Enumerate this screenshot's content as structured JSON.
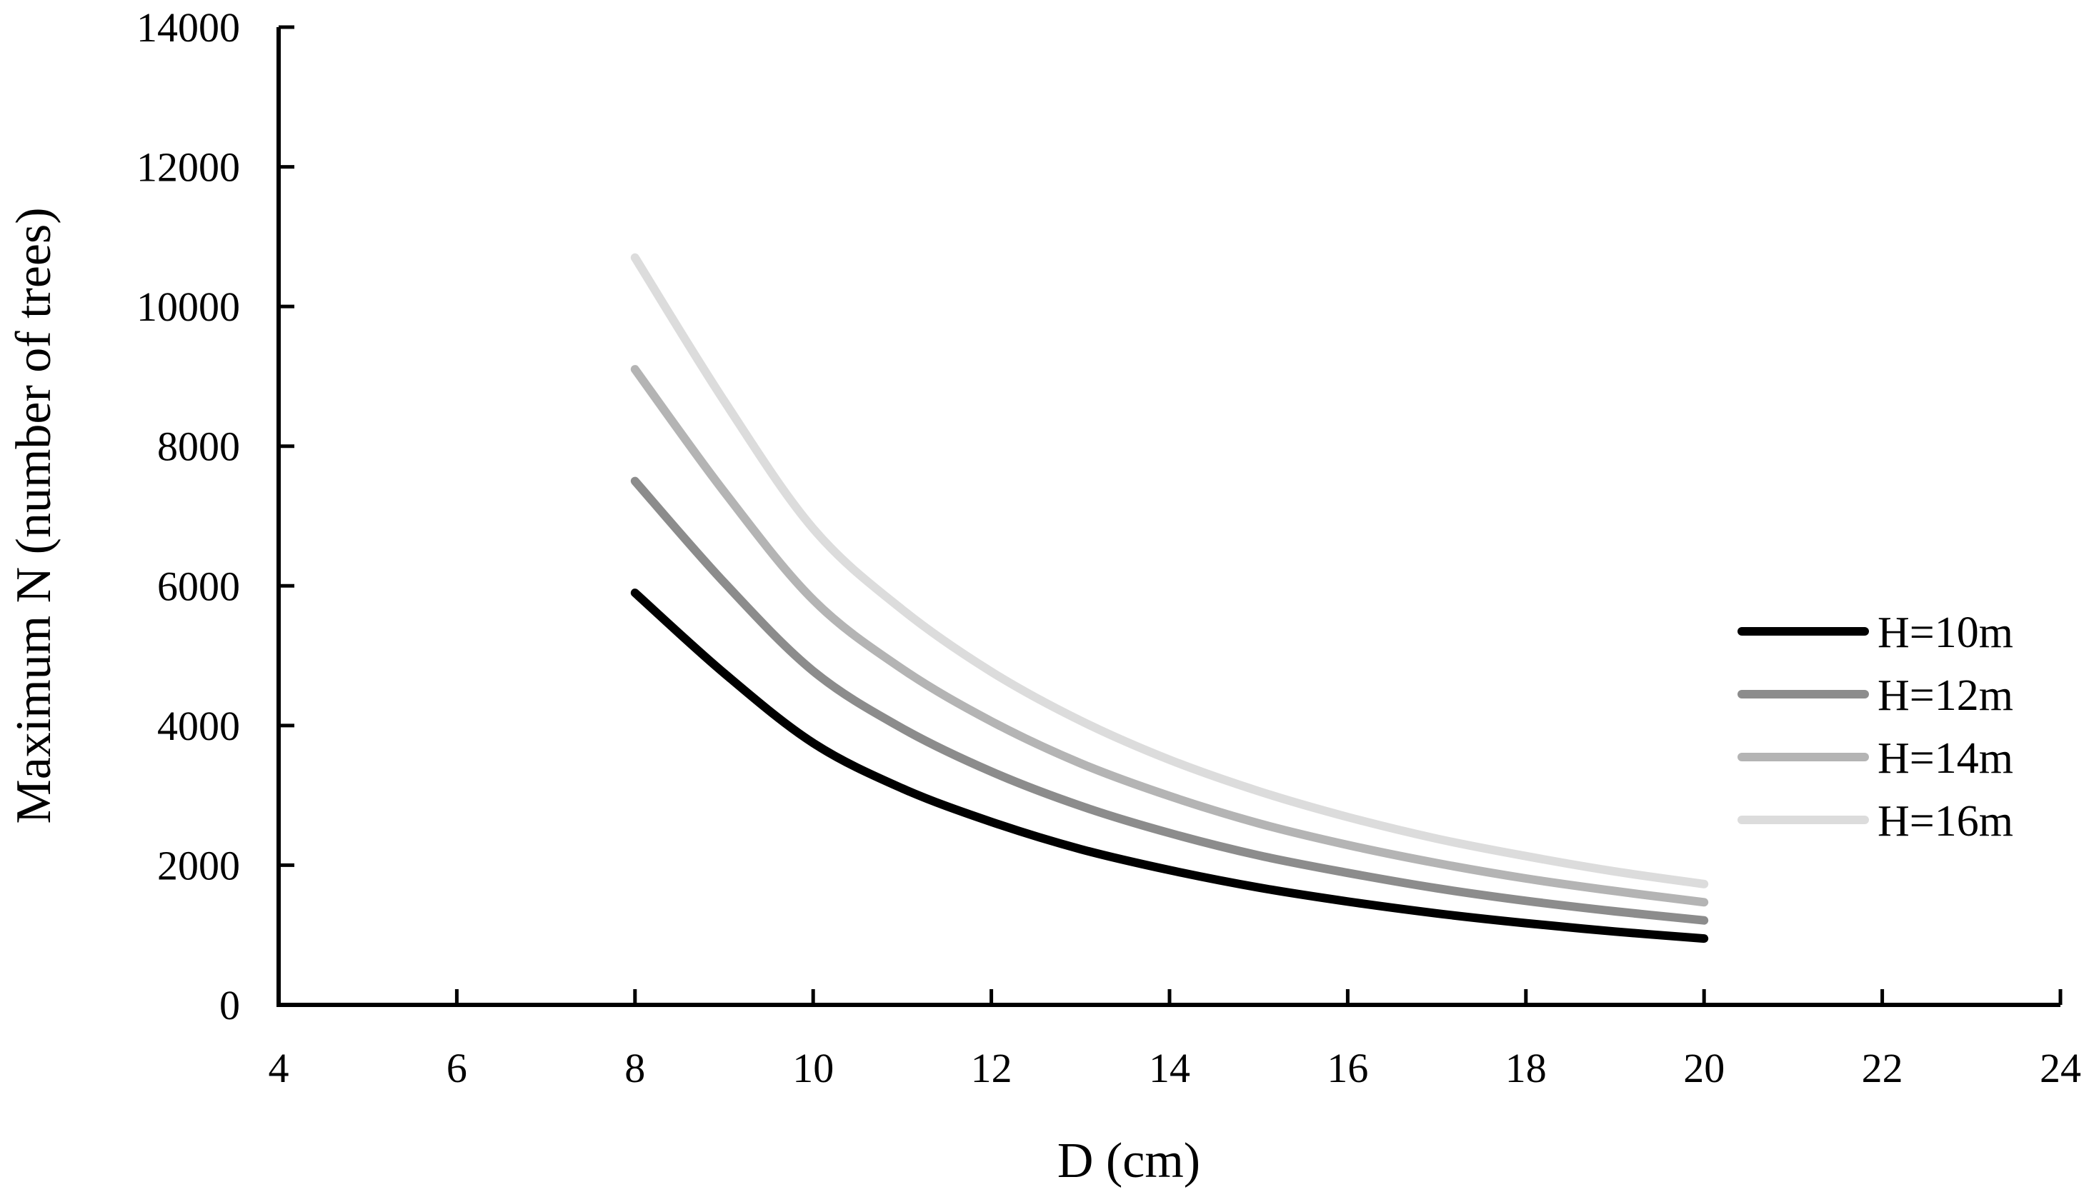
{
  "chart_data": {
    "type": "line",
    "xlabel": "D (cm)",
    "ylabel": "Maximum N (number of trees)",
    "xlim": [
      4,
      24
    ],
    "ylim": [
      0,
      14000
    ],
    "xticks": [
      4,
      6,
      8,
      10,
      12,
      14,
      16,
      18,
      20,
      22,
      24
    ],
    "yticks": [
      0,
      2000,
      4000,
      6000,
      8000,
      10000,
      12000,
      14000
    ],
    "grid": false,
    "legend_position": "right",
    "x": [
      8,
      9,
      10,
      11,
      12,
      13,
      14,
      15,
      16,
      17,
      18,
      19,
      20
    ],
    "series": [
      {
        "name": "H=10m",
        "color": "#000000",
        "values": [
          5900,
          4750,
          3750,
          3100,
          2620,
          2230,
          1930,
          1680,
          1480,
          1310,
          1170,
          1050,
          950
        ]
      },
      {
        "name": "H=12m",
        "color": "#8c8c8c",
        "values": [
          7500,
          6050,
          4780,
          3960,
          3340,
          2850,
          2460,
          2140,
          1890,
          1670,
          1490,
          1340,
          1210
        ]
      },
      {
        "name": "H=14m",
        "color": "#b4b4b4",
        "values": [
          9100,
          7350,
          5800,
          4810,
          4060,
          3460,
          2990,
          2600,
          2290,
          2030,
          1810,
          1630,
          1470
        ]
      },
      {
        "name": "H=16m",
        "color": "#dcdcdc",
        "values": [
          10700,
          8650,
          6820,
          5660,
          4770,
          4070,
          3510,
          3060,
          2690,
          2380,
          2130,
          1910,
          1730
        ]
      }
    ]
  }
}
